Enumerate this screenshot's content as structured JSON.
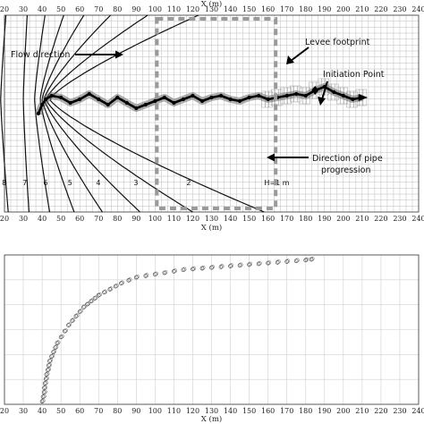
{
  "chart_data": [
    {
      "type": "line",
      "xlabel": "X (m)",
      "xlim": [
        20,
        240
      ],
      "x_ticks": [
        "20",
        "30",
        "40",
        "50",
        "60",
        "70",
        "80",
        "90",
        "100",
        "110",
        "120",
        "130",
        "140",
        "150",
        "160",
        "170",
        "180",
        "190",
        "200",
        "210",
        "220",
        "230",
        "240"
      ],
      "grid": true,
      "series": [
        {
          "x": [
            38,
            40,
            42,
            45,
            50,
            55,
            60,
            65,
            70,
            75,
            80,
            85,
            90,
            95,
            100,
            105,
            110,
            115,
            120,
            125,
            130,
            135,
            140,
            145,
            150,
            155,
            160,
            165,
            170,
            175,
            180,
            185,
            190,
            195,
            200,
            205,
            210
          ],
          "y": [
            5.5,
            6,
            6.3,
            6.5,
            6.4,
            6.1,
            6.3,
            6.6,
            6.3,
            6.0,
            6.4,
            6.1,
            5.8,
            6.0,
            6.2,
            6.4,
            6.1,
            6.3,
            6.5,
            6.2,
            6.4,
            6.5,
            6.3,
            6.2,
            6.4,
            6.5,
            6.3,
            6.4,
            6.5,
            6.6,
            6.5,
            6.8,
            7.0,
            6.7,
            6.5,
            6.3,
            6.4
          ]
        }
      ],
      "contours": [
        {
          "name": "8",
          "base_x": 22,
          "min_x": 18
        },
        {
          "name": "7",
          "base_x": 33,
          "min_x": 30
        },
        {
          "name": "6",
          "base_x": 44,
          "min_x": 36
        },
        {
          "name": "5",
          "base_x": 57,
          "min_x": 39
        },
        {
          "name": "4",
          "base_x": 72,
          "min_x": 40
        },
        {
          "name": "3",
          "base_x": 92,
          "min_x": 41
        },
        {
          "name": "2",
          "base_x": 120,
          "min_x": 42
        },
        {
          "name": "H=1 m",
          "base_x": 158,
          "min_x": 44
        }
      ],
      "annotations": {
        "flow_direction": "Flow direction",
        "levee_footprint": "Levee footprint",
        "initiation_point": "Initiation Point",
        "direction_of_pipe_line1": "Direction of pipe",
        "direction_of_pipe_line2": "progression"
      },
      "levee_x_range": [
        100,
        165
      ]
    },
    {
      "type": "scatter",
      "xlabel": "X (m)",
      "xlim": [
        20,
        240
      ],
      "x_ticks": [
        "20",
        "30",
        "40",
        "50",
        "60",
        "70",
        "80",
        "90",
        "100",
        "110",
        "120",
        "130",
        "140",
        "150",
        "160",
        "170",
        "180",
        "190",
        "200",
        "210",
        "220",
        "230",
        "240"
      ],
      "grid": true,
      "series": [
        {
          "x": [
            40,
            40.5,
            41,
            41.2,
            41.5,
            42,
            42.3,
            43,
            43.5,
            44,
            45,
            46,
            47,
            48,
            50,
            52,
            54,
            56,
            58,
            60,
            62,
            64,
            66,
            68,
            70,
            73,
            76,
            79,
            82,
            86,
            90,
            95,
            100,
            105,
            110,
            115,
            120,
            125,
            130,
            135,
            140,
            145,
            150,
            155,
            160,
            165,
            170,
            175,
            180,
            183
          ],
          "y": [
            0.02,
            0.05,
            0.08,
            0.11,
            0.14,
            0.17,
            0.2,
            0.23,
            0.26,
            0.29,
            0.32,
            0.35,
            0.38,
            0.41,
            0.45,
            0.49,
            0.53,
            0.56,
            0.59,
            0.62,
            0.65,
            0.67,
            0.69,
            0.71,
            0.73,
            0.75,
            0.77,
            0.79,
            0.81,
            0.83,
            0.85,
            0.86,
            0.87,
            0.88,
            0.89,
            0.9,
            0.905,
            0.91,
            0.915,
            0.92,
            0.925,
            0.93,
            0.935,
            0.94,
            0.945,
            0.95,
            0.955,
            0.96,
            0.965,
            0.97
          ]
        }
      ]
    }
  ]
}
